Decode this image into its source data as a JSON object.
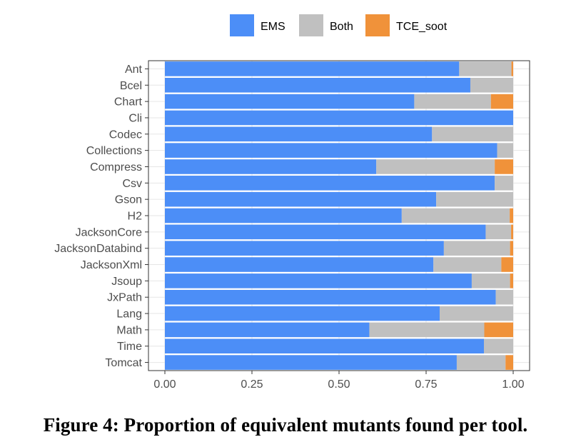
{
  "caption": "Figure 4: Proportion of equivalent mutants found per tool.",
  "colors": {
    "EMS": "#4C8EF7",
    "Both": "#C0C0C0",
    "TCE_soot": "#F0923A",
    "panel_border": "#333333",
    "grid": "#E6E6E6",
    "axis_text": "#4D4D4D"
  },
  "chart_data": {
    "type": "bar",
    "orientation": "horizontal",
    "stacked": true,
    "title": "",
    "xlabel": "",
    "ylabel": "",
    "xlim": [
      0,
      1
    ],
    "x_ticks": [
      "0.00",
      "0.25",
      "0.50",
      "0.75",
      "1.00"
    ],
    "x_tick_values": [
      0,
      0.25,
      0.5,
      0.75,
      1.0
    ],
    "legend_position": "top",
    "grid": true,
    "categories": [
      "Ant",
      "Bcel",
      "Chart",
      "Cli",
      "Codec",
      "Collections",
      "Compress",
      "Csv",
      "Gson",
      "H2",
      "JacksonCore",
      "JacksonDatabind",
      "JacksonXml",
      "Jsoup",
      "JxPath",
      "Lang",
      "Math",
      "Time",
      "Tomcat"
    ],
    "series": [
      {
        "name": "EMS",
        "values": [
          0.845,
          0.877,
          0.716,
          1.0,
          0.767,
          0.954,
          0.607,
          0.947,
          0.779,
          0.68,
          0.921,
          0.801,
          0.771,
          0.881,
          0.95,
          0.789,
          0.587,
          0.916,
          0.838
        ]
      },
      {
        "name": "Both",
        "values": [
          0.15,
          0.123,
          0.22,
          0.0,
          0.233,
          0.046,
          0.34,
          0.053,
          0.221,
          0.31,
          0.073,
          0.19,
          0.195,
          0.11,
          0.05,
          0.211,
          0.33,
          0.084,
          0.14
        ]
      },
      {
        "name": "TCE_soot",
        "values": [
          0.005,
          0.0,
          0.064,
          0.0,
          0.0,
          0.0,
          0.053,
          0.0,
          0.0,
          0.01,
          0.006,
          0.009,
          0.034,
          0.009,
          0.0,
          0.0,
          0.083,
          0.0,
          0.022
        ]
      }
    ]
  }
}
